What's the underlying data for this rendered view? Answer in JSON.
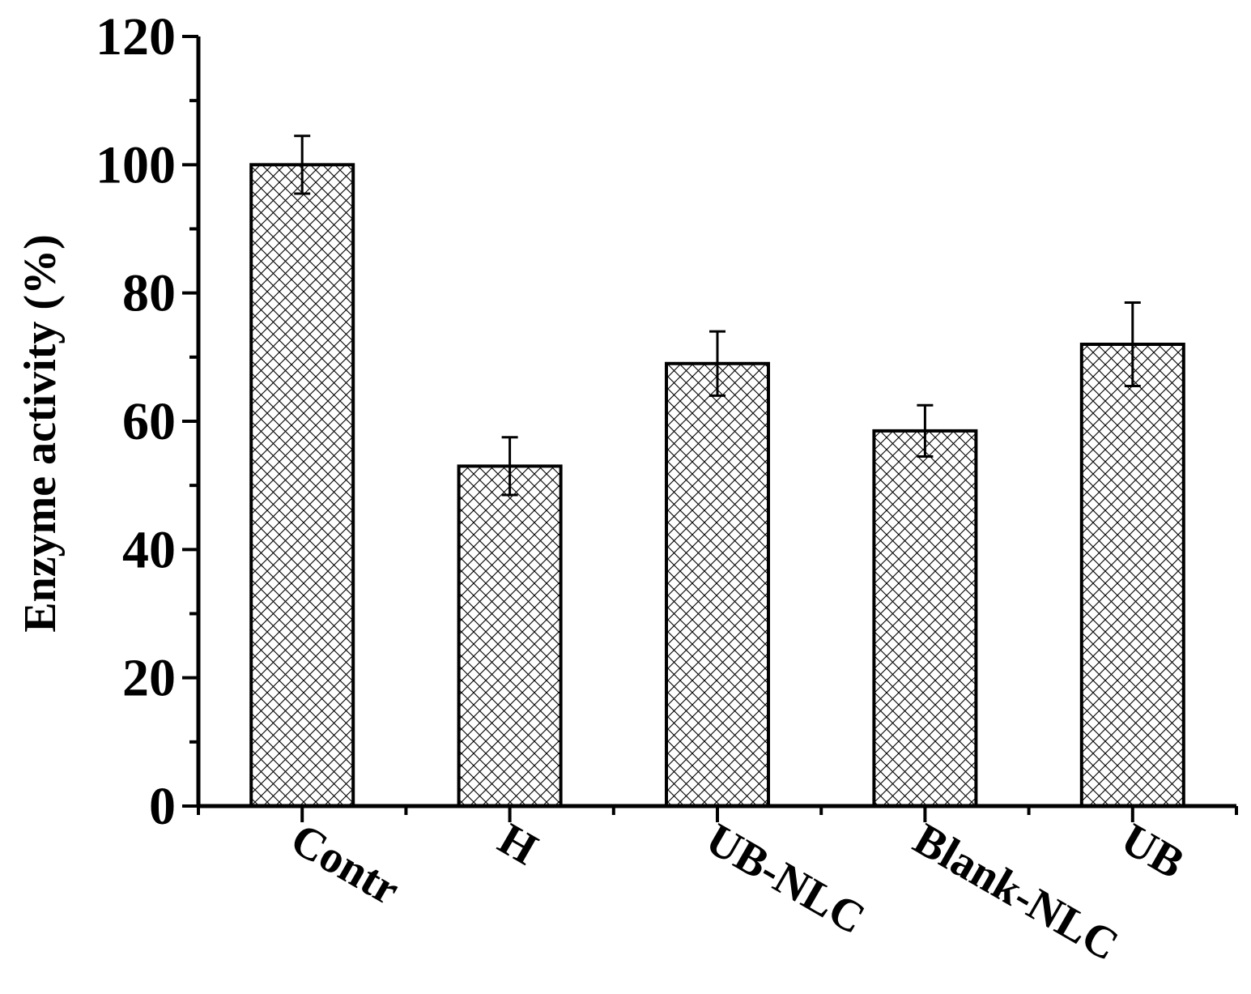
{
  "chart_data": {
    "type": "bar",
    "title": "",
    "xlabel": "",
    "ylabel": "Enzyme activity (%)",
    "ylim": [
      0,
      120
    ],
    "yticks": [
      0,
      20,
      40,
      60,
      80,
      100,
      120
    ],
    "grid": false,
    "legend": "none",
    "categories": [
      "Contr",
      "H",
      "UB-NLC",
      "Blank-NLC",
      "UB"
    ],
    "values": [
      100,
      53,
      69,
      58.5,
      72
    ],
    "errors": [
      4.5,
      4.5,
      5,
      4,
      6.5
    ],
    "bar_pattern": "crosshatch",
    "bar_fill_color": "#ffffff",
    "bar_stroke_color": "#000000"
  }
}
